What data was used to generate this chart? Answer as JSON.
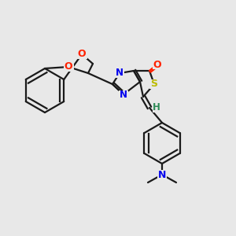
{
  "bg_color": "#e8e8e8",
  "bond_color": "#1a1a1a",
  "atom_colors": {
    "O": "#ff2200",
    "N": "#0000ee",
    "S": "#bbbb00",
    "H": "#2e8b57",
    "C": "#1a1a1a"
  }
}
